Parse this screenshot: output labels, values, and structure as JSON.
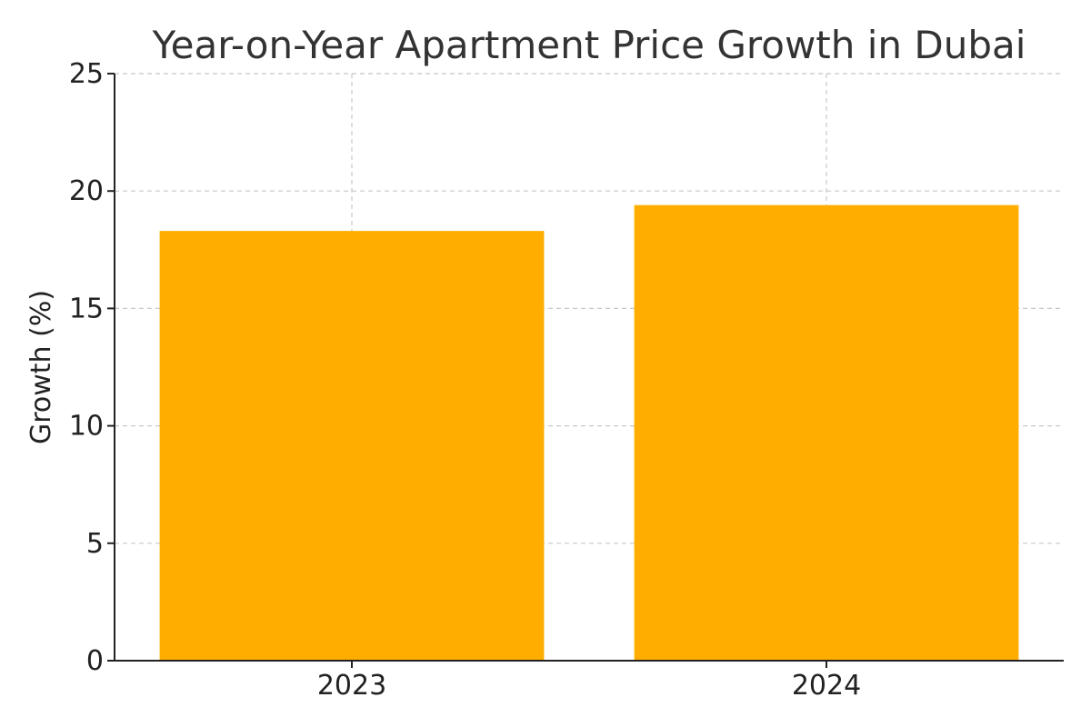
{
  "chart_data": {
    "type": "bar",
    "title": "Year-on-Year Apartment Price Growth in Dubai",
    "xlabel": "",
    "ylabel": "Growth (%)",
    "categories": [
      "2023",
      "2024"
    ],
    "values": [
      18.3,
      19.4
    ],
    "ylim": [
      0,
      25
    ],
    "yticks": [
      "0",
      "5",
      "10",
      "15",
      "20",
      "25"
    ],
    "grid": true,
    "bar_color": "#FFAE00"
  }
}
